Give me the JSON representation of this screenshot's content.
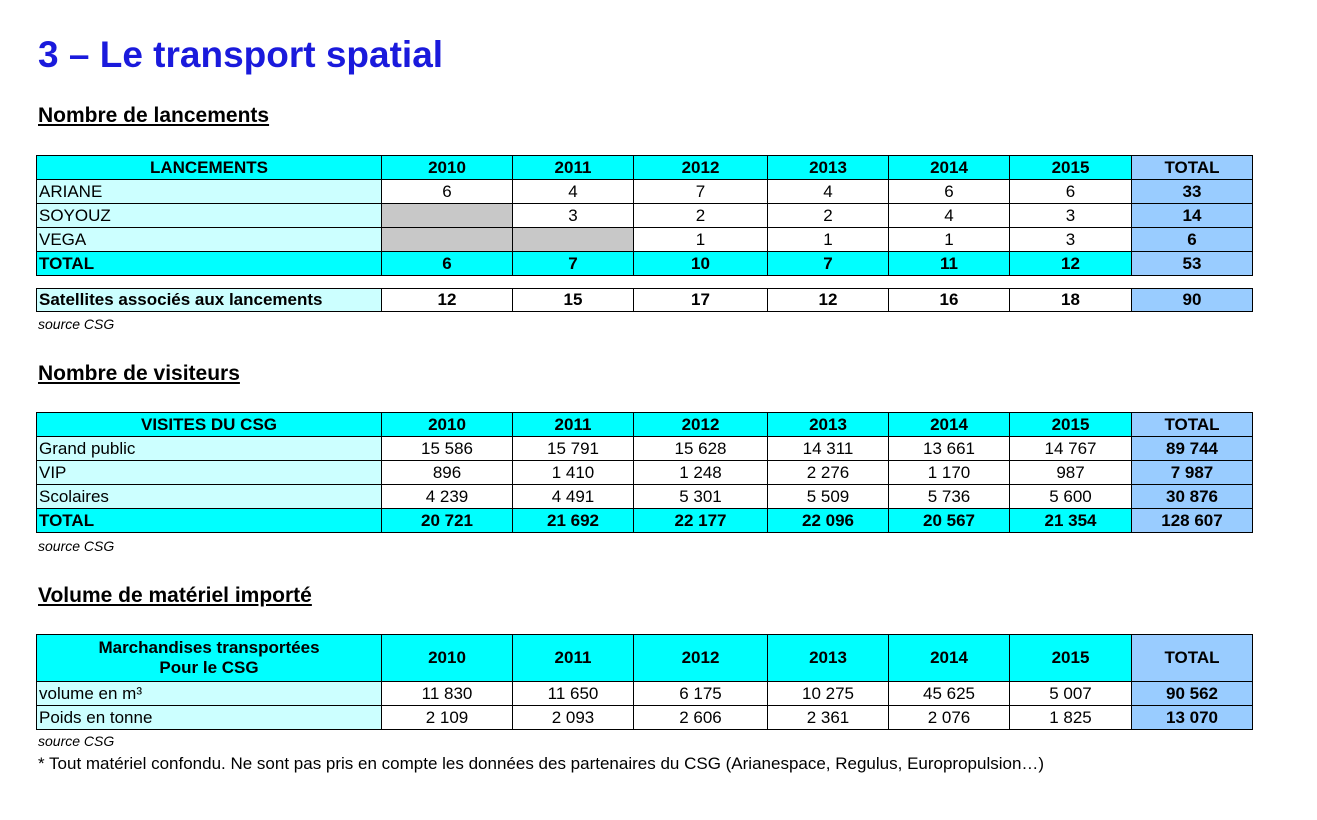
{
  "title": "3 – Le transport spatial",
  "years": [
    "2010",
    "2011",
    "2012",
    "2013",
    "2014",
    "2015"
  ],
  "total_label": "TOTAL",
  "source": "source CSG",
  "footnote": "* Tout matériel confondu. Ne sont pas pris en compte les données des partenaires du CSG (Arianespace, Regulus, Europropulsion…)",
  "launches": {
    "heading": "Nombre de lancements",
    "header": "LANCEMENTS",
    "rows": [
      {
        "label": "ARIANE",
        "values": [
          "6",
          "4",
          "7",
          "4",
          "6",
          "6"
        ],
        "total": "33"
      },
      {
        "label": "SOYOUZ",
        "values": [
          "",
          "3",
          "2",
          "2",
          "4",
          "3"
        ],
        "total": "14"
      },
      {
        "label": "VEGA",
        "values": [
          "",
          "",
          "1",
          "1",
          "1",
          "3"
        ],
        "total": "6"
      }
    ],
    "total_row": {
      "label": "TOTAL",
      "values": [
        "6",
        "7",
        "10",
        "7",
        "11",
        "12"
      ],
      "total": "53"
    },
    "satellites": {
      "label": "Satellites associés aux lancements",
      "values": [
        "12",
        "15",
        "17",
        "12",
        "16",
        "18"
      ],
      "total": "90"
    }
  },
  "visitors": {
    "heading": "Nombre de visiteurs",
    "header": "VISITES DU CSG",
    "rows": [
      {
        "label": "Grand public",
        "values": [
          "15 586",
          "15 791",
          "15 628",
          "14 311",
          "13 661",
          "14 767"
        ],
        "total": "89 744"
      },
      {
        "label": "VIP",
        "values": [
          "896",
          "1 410",
          "1 248",
          "2 276",
          "1 170",
          "987"
        ],
        "total": "7 987"
      },
      {
        "label": "Scolaires",
        "values": [
          "4 239",
          "4 491",
          "5 301",
          "5 509",
          "5 736",
          "5 600"
        ],
        "total": "30 876"
      }
    ],
    "total_row": {
      "label": "TOTAL",
      "values": [
        "20 721",
        "21 692",
        "22 177",
        "22 096",
        "20 567",
        "21 354"
      ],
      "total": "128 607"
    }
  },
  "imports": {
    "heading": "Volume de matériel importé",
    "header_line1": "Marchandises transportées",
    "header_line2": "Pour le CSG",
    "rows": [
      {
        "label": "volume en m³",
        "values": [
          "11 830",
          "11 650",
          "6 175",
          "10 275",
          "45 625",
          "5 007"
        ],
        "total": "90 562"
      },
      {
        "label": "Poids en tonne",
        "values": [
          "2 109",
          "2 093",
          "2 606",
          "2 361",
          "2 076",
          "1 825"
        ],
        "total": "13 070"
      }
    ]
  }
}
